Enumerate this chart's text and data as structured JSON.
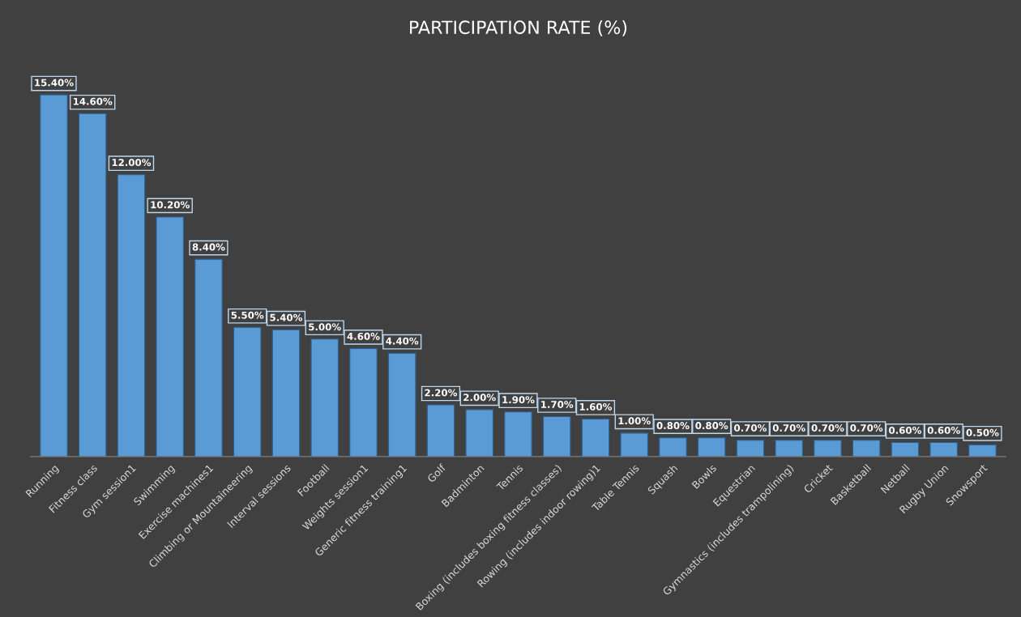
{
  "chart_data": {
    "type": "bar",
    "title": "PARTICIPATION RATE (%)",
    "categories": [
      "Running",
      "Fitness class",
      "Gym session1",
      "Swimming",
      "Exercise machines1",
      "Climbing or Mountaineering",
      "Interval sessions",
      "Football",
      "Weights session1",
      "Generic fitness training1",
      "Golf",
      "Badminton",
      "Tennis",
      "Boxing (includes boxing fitness classes)",
      "Rowing (includes indoor rowing)1",
      "Table Tennis",
      "Squash",
      "Bowls",
      "Equestrian",
      "Gymnastics (includes trampolining)",
      "Cricket",
      "Basketball",
      "Netball",
      "Rugby Union",
      "Snowsport"
    ],
    "values": [
      15.4,
      14.6,
      12.0,
      10.2,
      8.4,
      5.5,
      5.4,
      5.0,
      4.6,
      4.4,
      2.2,
      2.0,
      1.9,
      1.7,
      1.6,
      1.0,
      0.8,
      0.8,
      0.7,
      0.7,
      0.7,
      0.7,
      0.6,
      0.6,
      0.5
    ],
    "value_labels": [
      "15.40%",
      "14.60%",
      "12.00%",
      "10.20%",
      "8.40%",
      "5.50%",
      "5.40%",
      "5.00%",
      "4.60%",
      "4.40%",
      "2.20%",
      "2.00%",
      "1.90%",
      "1.70%",
      "1.60%",
      "1.00%",
      "0.80%",
      "0.80%",
      "0.70%",
      "0.70%",
      "0.70%",
      "0.70%",
      "0.60%",
      "0.60%",
      "0.50%"
    ],
    "color": "#5b9bd5",
    "grid": false,
    "legend": false
  }
}
